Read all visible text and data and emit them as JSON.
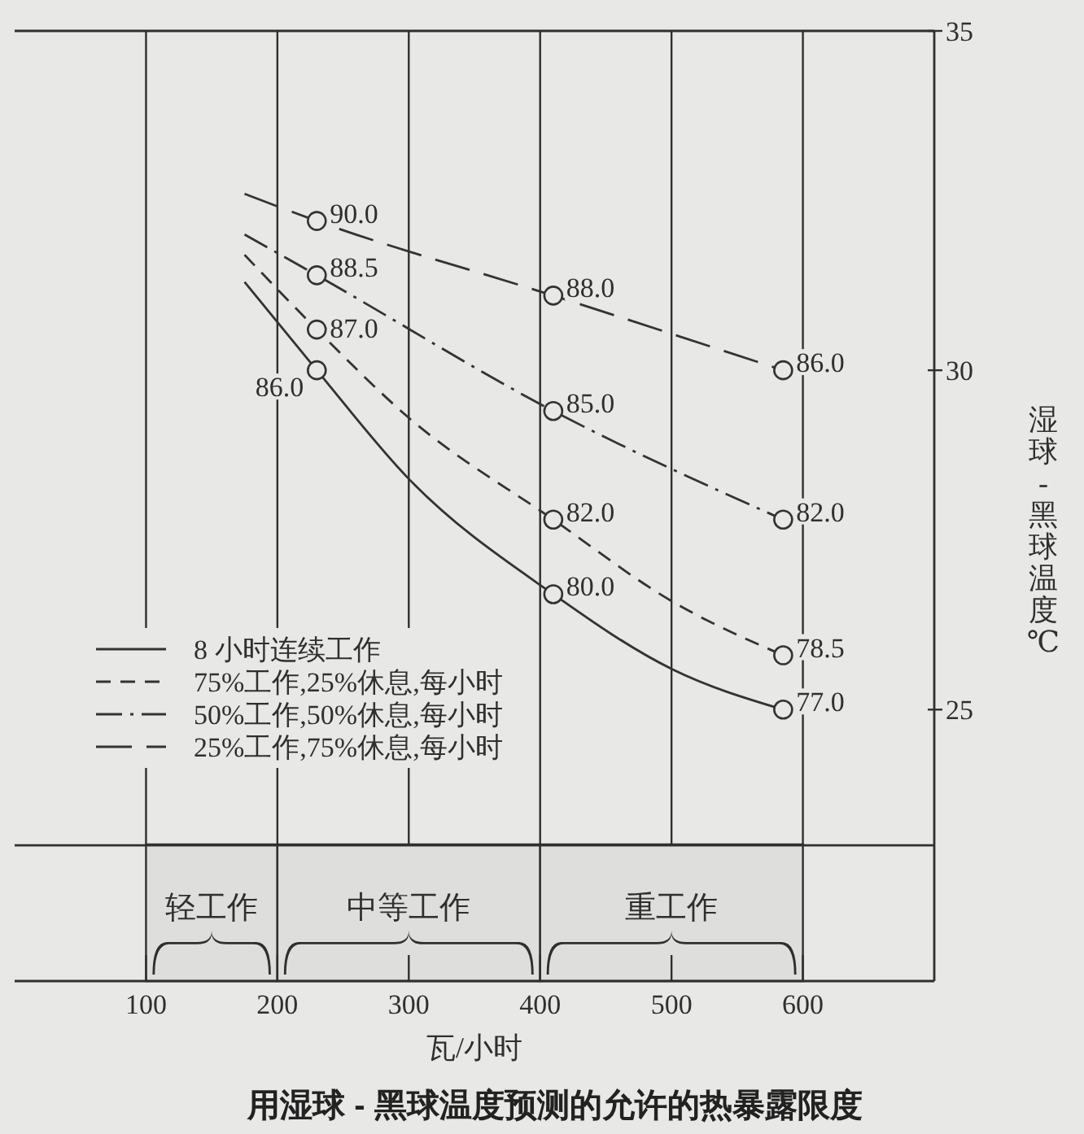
{
  "chart_data": {
    "type": "line",
    "title": "用湿球 - 黑球温度预测的允许的热暴露限度",
    "xlabel": "瓦/小时",
    "ylabel": "湿球-黑球温度℃",
    "xlim": [
      0,
      700
    ],
    "xticks": [
      100,
      200,
      300,
      400,
      500,
      600
    ],
    "ylim": [
      21,
      35
    ],
    "yticks": [
      25,
      30,
      35
    ],
    "grid": "x",
    "legend": "bottom left",
    "ref_lines": [
      {
        "axis": "y",
        "value": 23
      }
    ],
    "bands": [
      {
        "axis": "x",
        "from": 100,
        "to": 200,
        "label": "轻工作",
        "color": "#dededc"
      },
      {
        "axis": "x",
        "from": 200,
        "to": 400,
        "label": "中等工作",
        "color": "#dededc"
      },
      {
        "axis": "x",
        "from": 400,
        "to": 600,
        "label": "重工作",
        "color": "#dededc"
      }
    ],
    "series": [
      {
        "name": "8 小时连续工作",
        "color": "#333333",
        "line_style": "solid",
        "x": [
          175,
          230,
          300,
          410,
          500,
          585
        ],
        "values": [
          31.3,
          30.0,
          28.4,
          26.7,
          25.6,
          25.0
        ]
      },
      {
        "name": "75%工作,25%休息,每小时",
        "color": "#333333",
        "line_style": "dashed",
        "x": [
          175,
          230,
          300,
          410,
          500,
          585
        ],
        "values": [
          31.7,
          30.6,
          29.3,
          27.8,
          26.6,
          25.8
        ]
      },
      {
        "name": "50%工作,50%休息,每小时",
        "color": "#333333",
        "line_style": "dashdot",
        "x": [
          175,
          230,
          410,
          585
        ],
        "values": [
          32.0,
          31.4,
          29.4,
          27.8
        ]
      },
      {
        "name": "25%工作,75%休息,每小时",
        "color": "#333333",
        "line_style": "longdash",
        "x": [
          175,
          230,
          410,
          585
        ],
        "values": [
          32.6,
          32.2,
          31.1,
          30.0
        ]
      },
      {
        "type": "scatter",
        "color": "#333333",
        "marker": "circle",
        "x": [
          230,
          410,
          585
        ],
        "values": [
          30.0,
          26.7,
          25.0
        ]
      },
      {
        "type": "scatter",
        "color": "#333333",
        "marker": "circle",
        "x": [
          230,
          410,
          585
        ],
        "values": [
          30.6,
          27.8,
          25.8
        ]
      },
      {
        "type": "scatter",
        "color": "#333333",
        "marker": "circle",
        "x": [
          230,
          410,
          585
        ],
        "values": [
          31.4,
          29.4,
          27.8
        ]
      },
      {
        "type": "scatter",
        "color": "#333333",
        "marker": "circle",
        "x": [
          230,
          410,
          585
        ],
        "values": [
          32.2,
          31.1,
          30.0
        ]
      }
    ],
    "annotations": [
      {
        "text": "86.0",
        "x": 230,
        "y": 30.0
      },
      {
        "text": "80.0",
        "x": 410,
        "y": 26.7
      },
      {
        "text": "77.0",
        "x": 585,
        "y": 25.0
      },
      {
        "text": "87.0",
        "x": 230,
        "y": 30.6
      },
      {
        "text": "82.0",
        "x": 410,
        "y": 27.8
      },
      {
        "text": "78.5",
        "x": 585,
        "y": 25.8
      },
      {
        "text": "88.5",
        "x": 230,
        "y": 31.4
      },
      {
        "text": "85.0",
        "x": 410,
        "y": 29.4
      },
      {
        "text": "82.0",
        "x": 585,
        "y": 27.8
      },
      {
        "text": "90.0",
        "x": 230,
        "y": 32.2
      },
      {
        "text": "88.0",
        "x": 410,
        "y": 31.1
      },
      {
        "text": "86.0",
        "x": 585,
        "y": 30.0
      }
    ]
  }
}
